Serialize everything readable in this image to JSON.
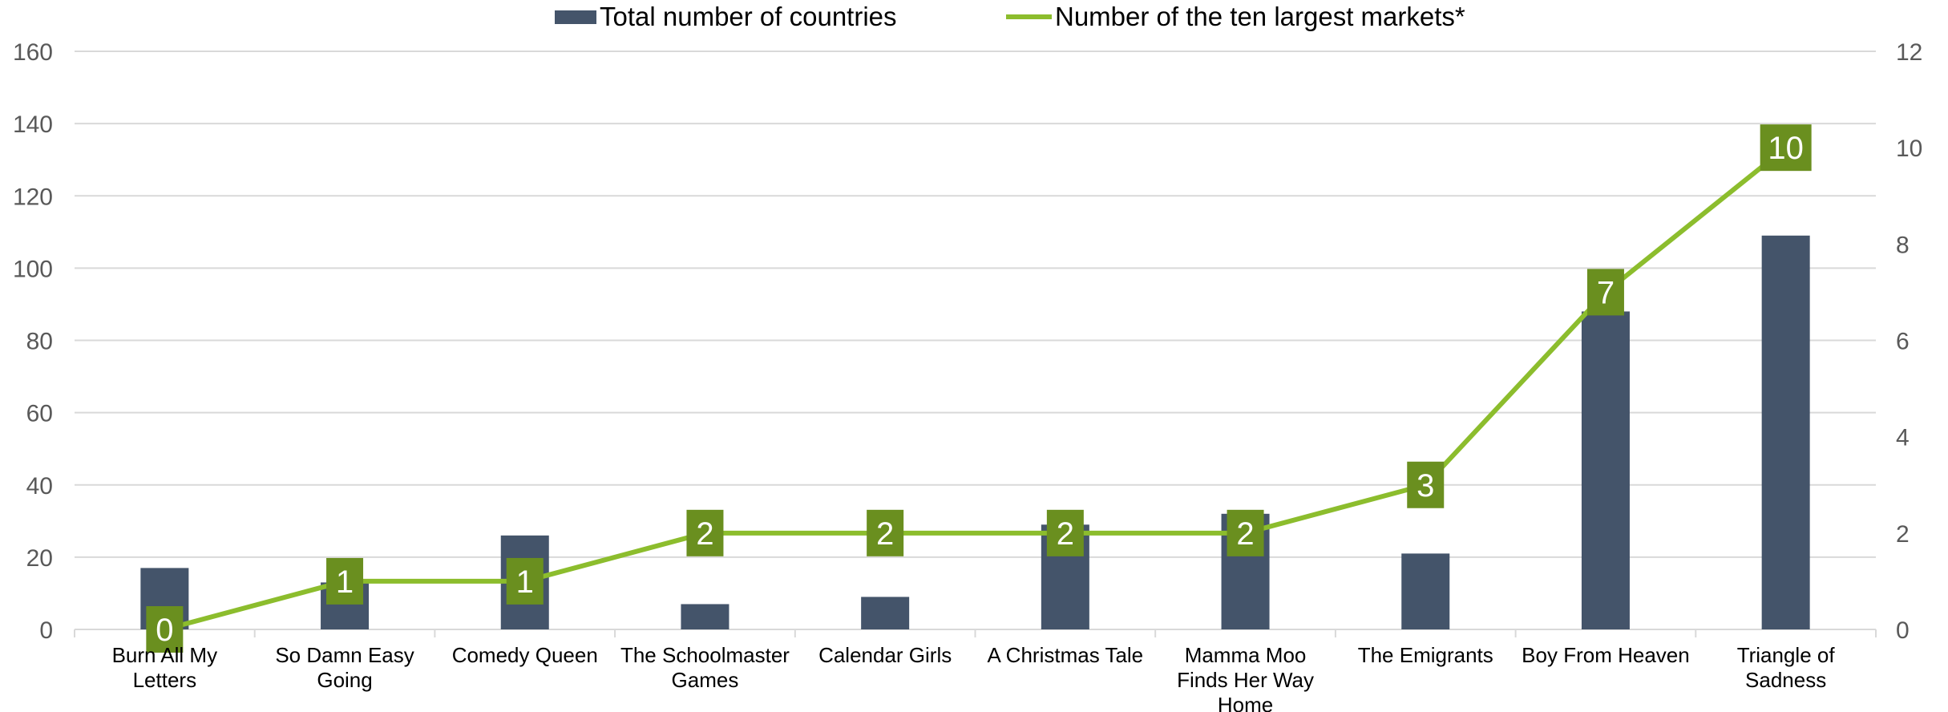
{
  "chart_data": {
    "type": "bar",
    "categories": [
      "Burn All My Letters",
      "So Damn Easy Going",
      "Comedy Queen",
      "The Schoolmaster Games",
      "Calendar Girls",
      "A Christmas Tale",
      "Mamma Moo Finds Her Way Home",
      "The Emigrants",
      "Boy From Heaven",
      "Triangle of Sadness"
    ],
    "category_lines": [
      [
        "Burn All My",
        "Letters"
      ],
      [
        "So Damn Easy",
        "Going"
      ],
      [
        "Comedy Queen"
      ],
      [
        "The Schoolmaster",
        "Games"
      ],
      [
        "Calendar Girls"
      ],
      [
        "A Christmas Tale"
      ],
      [
        "Mamma Moo",
        "Finds Her Way",
        "Home"
      ],
      [
        "The Emigrants"
      ],
      [
        "Boy From Heaven"
      ],
      [
        "Triangle of",
        "Sadness"
      ]
    ],
    "series": [
      {
        "name": "Total number of countries",
        "type": "bar",
        "axis": "left",
        "color": "#44546a",
        "values": [
          17,
          13,
          26,
          7,
          9,
          29,
          32,
          21,
          88,
          109
        ]
      },
      {
        "name": "Number of the ten largest markets*",
        "type": "line",
        "axis": "right",
        "color": "#8cbd2d",
        "label_color": "#6a8f1f",
        "values": [
          0,
          1,
          1,
          2,
          2,
          2,
          2,
          3,
          7,
          10
        ]
      }
    ],
    "y_left": {
      "ylim": [
        0,
        160
      ],
      "ticks": [
        "0",
        "20",
        "40",
        "60",
        "80",
        "100",
        "120",
        "140",
        "160"
      ]
    },
    "y_right": {
      "ylim": [
        0,
        12
      ],
      "ticks": [
        "0",
        "2",
        "4",
        "6",
        "8",
        "10",
        "12"
      ]
    },
    "grid": true,
    "legend_position": "top-center",
    "title": "",
    "xlabel": "",
    "ylabel": ""
  }
}
